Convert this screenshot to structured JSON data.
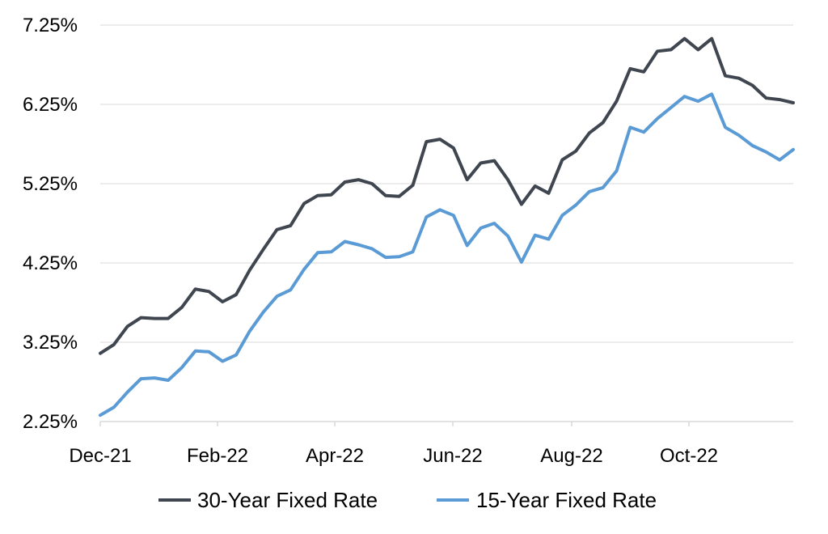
{
  "chart_data": {
    "type": "line",
    "title": "",
    "xlabel": "",
    "ylabel": "",
    "ylim": [
      2.25,
      7.25
    ],
    "y_ticks": [
      "2.25%",
      "3.25%",
      "4.25%",
      "5.25%",
      "6.25%",
      "7.25%"
    ],
    "x_ticks": [
      "Dec-21",
      "Feb-22",
      "Apr-22",
      "Jun-22",
      "Aug-22",
      "Oct-22"
    ],
    "grid": "horizontal",
    "legend_position": "bottom",
    "series": [
      {
        "name": "30-Year Fixed Rate",
        "color": "#3f4650",
        "values": [
          3.11,
          3.22,
          3.45,
          3.56,
          3.55,
          3.55,
          3.69,
          3.92,
          3.89,
          3.76,
          3.85,
          4.16,
          4.42,
          4.67,
          4.72,
          5.0,
          5.1,
          5.11,
          5.27,
          5.3,
          5.25,
          5.1,
          5.09,
          5.23,
          5.78,
          5.81,
          5.7,
          5.3,
          5.51,
          5.54,
          5.3,
          4.99,
          5.22,
          5.13,
          5.55,
          5.66,
          5.89,
          6.02,
          6.29,
          6.7,
          6.66,
          6.92,
          6.94,
          7.08,
          6.94,
          7.08,
          6.61,
          6.58,
          6.49,
          6.33,
          6.31,
          6.27
        ]
      },
      {
        "name": "15-Year Fixed Rate",
        "color": "#5b9bd5",
        "values": [
          2.33,
          2.43,
          2.62,
          2.79,
          2.8,
          2.77,
          2.93,
          3.14,
          3.13,
          3.01,
          3.09,
          3.39,
          3.63,
          3.83,
          3.91,
          4.17,
          4.38,
          4.39,
          4.52,
          4.48,
          4.43,
          4.32,
          4.33,
          4.39,
          4.83,
          4.92,
          4.85,
          4.47,
          4.69,
          4.75,
          4.59,
          4.26,
          4.6,
          4.55,
          4.85,
          4.98,
          5.15,
          5.2,
          5.41,
          5.96,
          5.9,
          6.07,
          6.21,
          6.35,
          6.29,
          6.38,
          5.96,
          5.86,
          5.73,
          5.65,
          5.55,
          5.68
        ]
      }
    ]
  }
}
